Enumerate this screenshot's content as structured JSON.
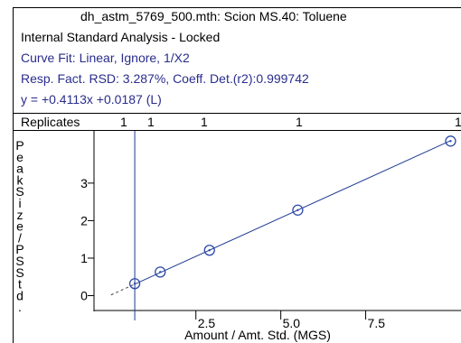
{
  "header": {
    "title": "dh_astm_5769_500.mth:  Scion MS.40:  Toluene",
    "analysis": "Internal Standard Analysis - Locked",
    "curve_fit": "Curve Fit: Linear, Ignore, 1/X2",
    "resp_fact": "Resp. Fact. RSD:  3.287%,    Coeff. Det.(r2):0.999742",
    "equation": "y =  +0.4113x +0.0187 (L)"
  },
  "replicates": {
    "label": "Replicates",
    "counts": [
      "1",
      "1",
      "1",
      "1",
      "1"
    ]
  },
  "colors": {
    "text_blue": "#2a2d8c",
    "series": "#1f3a93",
    "marker": "#2c4aa8"
  },
  "chart_data": {
    "type": "scatter",
    "title": "",
    "xlabel": "Amount / Amt. Std. (MGS)",
    "ylabel_chars": [
      "P",
      "e",
      "a",
      "k",
      "S",
      "i",
      "z",
      "e",
      "/",
      "P",
      "S",
      "S",
      "t",
      "d",
      "."
    ],
    "xlim": [
      -0.5,
      10.2
    ],
    "ylim": [
      -0.3,
      4.2
    ],
    "x_ticks": [
      2.5,
      5.0,
      7.5
    ],
    "x_tick_labels": [
      "2.5",
      "5.0",
      "7.5"
    ],
    "y_ticks": [
      0,
      1,
      2,
      3
    ],
    "y_tick_labels": [
      "0",
      "1",
      "2",
      "3"
    ],
    "points": [
      {
        "x": 0.7,
        "y": 0.32
      },
      {
        "x": 1.45,
        "y": 0.63
      },
      {
        "x": 2.9,
        "y": 1.21
      },
      {
        "x": 5.5,
        "y": 2.28
      },
      {
        "x": 10.0,
        "y": 4.12
      }
    ],
    "fit": {
      "slope": 0.4113,
      "intercept": 0.0187
    }
  }
}
